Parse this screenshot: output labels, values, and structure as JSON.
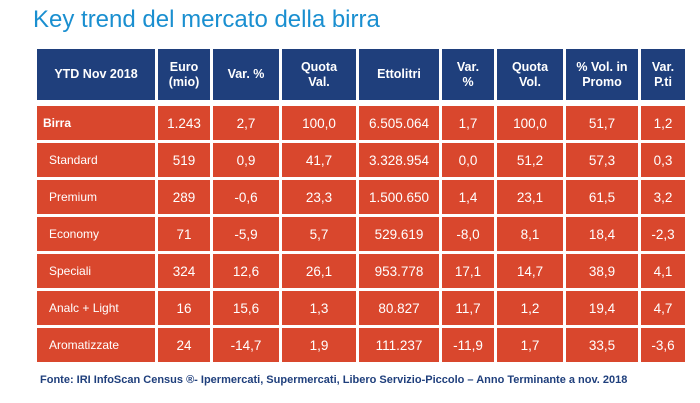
{
  "title": "Key trend del mercato della birra",
  "chart_data": {
    "type": "table",
    "columns": [
      "YTD Nov 2018",
      "Euro\n(mio)",
      "Var. %",
      "Quota\nVal.",
      "Ettolitri",
      "Var.\n%",
      "Quota\nVol.",
      "% Vol. in\nPromo",
      "Var.\nP.ti"
    ],
    "rows": [
      [
        "Birra",
        "1.243",
        "2,7",
        "100,0",
        "6.505.064",
        "1,7",
        "100,0",
        "51,7",
        "1,2"
      ],
      [
        "Standard",
        "519",
        "0,9",
        "41,7",
        "3.328.954",
        "0,0",
        "51,2",
        "57,3",
        "0,3"
      ],
      [
        "Premium",
        "289",
        "-0,6",
        "23,3",
        "1.500.650",
        "1,4",
        "23,1",
        "61,5",
        "3,2"
      ],
      [
        "Economy",
        "71",
        "-5,9",
        "5,7",
        "529.619",
        "-8,0",
        "8,1",
        "18,4",
        "-2,3"
      ],
      [
        "Speciali",
        "324",
        "12,6",
        "26,1",
        "953.778",
        "17,1",
        "14,7",
        "38,9",
        "4,1"
      ],
      [
        "Analc + Light",
        "16",
        "15,6",
        "1,3",
        "80.827",
        "11,7",
        "1,2",
        "19,4",
        "4,7"
      ],
      [
        "Aromatizzate",
        "24",
        "-14,7",
        "1,9",
        "111.237",
        "-11,9",
        "1,7",
        "33,5",
        "-3,6"
      ]
    ]
  },
  "source": "Fonte: IRI InfoScan Census ®- Ipermercati, Supermercati, Libero Servizio-Piccolo – Anno Terminante a nov. 2018",
  "colors": {
    "title": "#1a8fd0",
    "header_bg": "#1f3f7c",
    "cell_bg": "#d9472d",
    "source": "#1f3f7c"
  }
}
